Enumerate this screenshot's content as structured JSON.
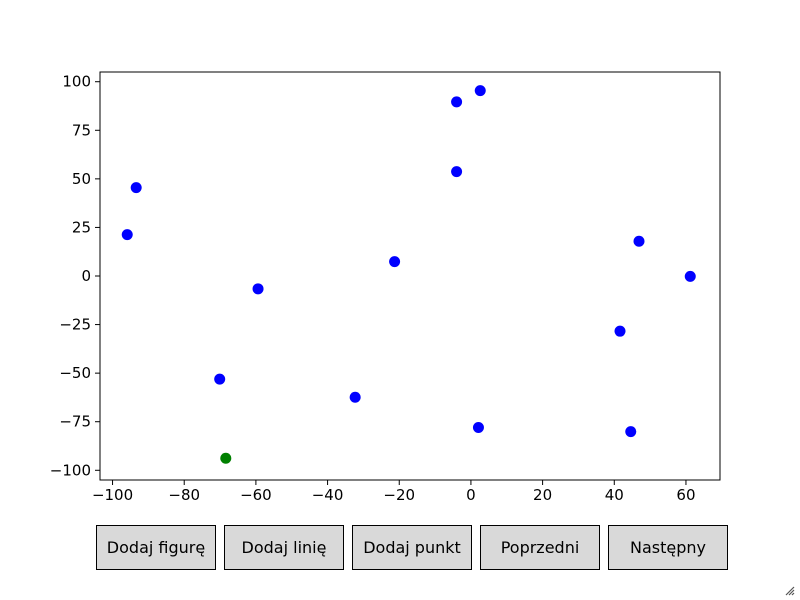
{
  "chart_data": {
    "type": "scatter",
    "title": "",
    "xlabel": "",
    "ylabel": "",
    "xlim": [
      -103.5,
      69.5
    ],
    "ylim": [
      -105,
      105
    ],
    "xticks": [
      -100,
      -80,
      -60,
      -40,
      -20,
      0,
      20,
      40,
      60
    ],
    "yticks": [
      100,
      75,
      50,
      25,
      0,
      -25,
      -50,
      -75,
      -100
    ],
    "grid": false,
    "series": [
      {
        "color": "#0000ff",
        "points": [
          {
            "x": -93.4,
            "y": 45.5
          },
          {
            "x": -95.9,
            "y": 21.3
          },
          {
            "x": -59.4,
            "y": -6.6
          },
          {
            "x": -70.1,
            "y": -53.1
          },
          {
            "x": -32.3,
            "y": -62.4
          },
          {
            "x": -21.3,
            "y": 7.4
          },
          {
            "x": -4.0,
            "y": 89.6
          },
          {
            "x": 2.6,
            "y": 95.4
          },
          {
            "x": -4.0,
            "y": 53.7
          },
          {
            "x": 2.1,
            "y": -78.0
          },
          {
            "x": 41.6,
            "y": -28.4
          },
          {
            "x": 46.9,
            "y": 17.9
          },
          {
            "x": 61.2,
            "y": -0.2
          },
          {
            "x": 44.6,
            "y": -80.1
          }
        ]
      },
      {
        "color": "#008000",
        "points": [
          {
            "x": -68.4,
            "y": -93.8
          }
        ]
      }
    ]
  },
  "buttons": {
    "add_shape": "Dodaj figurę",
    "add_line": "Dodaj linię",
    "add_point": "Dodaj punkt",
    "previous": "Poprzedni",
    "next": "Następny"
  }
}
